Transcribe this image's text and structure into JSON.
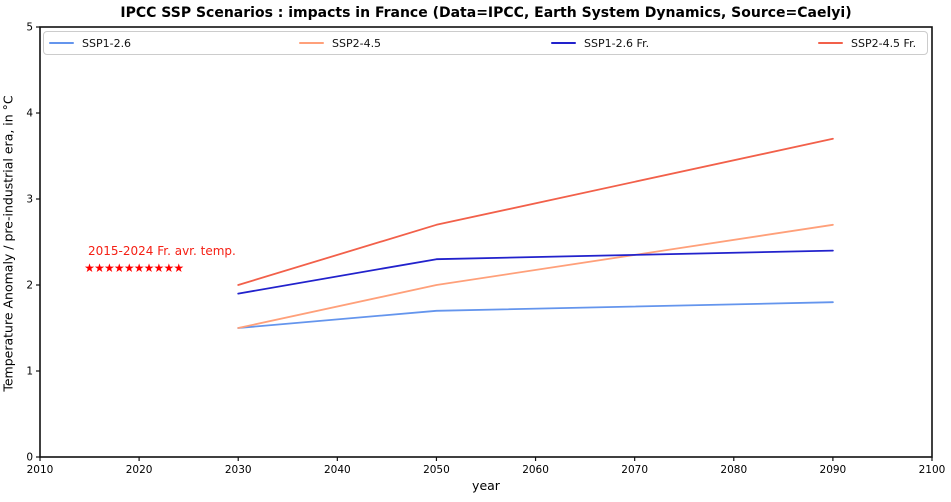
{
  "chart_data": {
    "type": "line",
    "title": "IPCC SSP Scenarios : impacts in France (Data=IPCC, Earth System Dynamics, Source=Caelyi)",
    "xlabel": "year",
    "ylabel": "Temperature Anomaly / pre-industrial era, in °C",
    "xlim": [
      2010,
      2100
    ],
    "ylim": [
      0,
      5
    ],
    "x_ticks": [
      2010,
      2020,
      2030,
      2040,
      2050,
      2060,
      2070,
      2080,
      2090,
      2100
    ],
    "y_ticks": [
      0,
      1,
      2,
      3,
      4,
      5
    ],
    "grid": false,
    "legend_position": "top-inside, horizontal, 4 columns, expanded across plot width",
    "series": [
      {
        "name": "SSP1-2.6",
        "color": "#6495ED",
        "x": [
          2030,
          2050,
          2090
        ],
        "y": [
          1.5,
          1.7,
          1.8
        ]
      },
      {
        "name": "SSP2-4.5",
        "color": "#FFA07A",
        "x": [
          2030,
          2050,
          2090
        ],
        "y": [
          1.5,
          2.0,
          2.7
        ]
      },
      {
        "name": "SSP1-2.6 Fr.",
        "color": "#2222CC",
        "x": [
          2030,
          2050,
          2090
        ],
        "y": [
          1.9,
          2.3,
          2.4
        ]
      },
      {
        "name": "SSP2-4.5 Fr.",
        "color": "#F2604A",
        "x": [
          2030,
          2050,
          2090
        ],
        "y": [
          2.0,
          2.7,
          3.7
        ]
      }
    ],
    "scatter": {
      "name": "2015-2024 Fr. avr. temp.",
      "marker": "star",
      "color": "#FF0000",
      "x": [
        2015,
        2016,
        2017,
        2018,
        2019,
        2020,
        2021,
        2022,
        2023,
        2024
      ],
      "y": [
        2.2,
        2.2,
        2.2,
        2.2,
        2.2,
        2.2,
        2.2,
        2.2,
        2.2,
        2.2
      ]
    }
  },
  "annotation": {
    "label": "2015-2024 Fr. avr. temp.",
    "color": "#F52015"
  },
  "axes": {
    "spine_color": "#111111",
    "tick_color": "#111111",
    "text_color": "#000000"
  }
}
